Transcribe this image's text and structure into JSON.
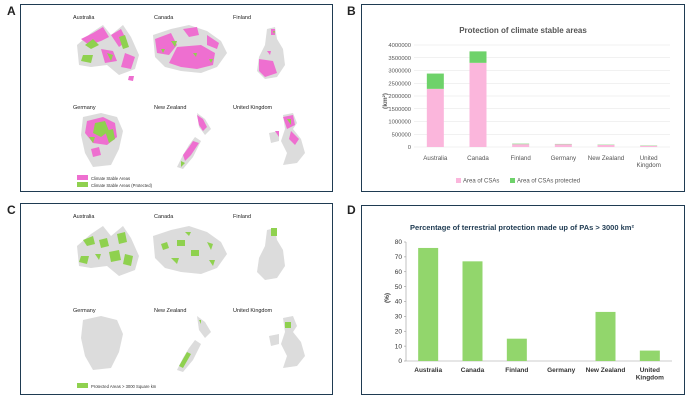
{
  "panels": {
    "a": {
      "letter": "A",
      "maps": [
        {
          "label": "Australia"
        },
        {
          "label": "Canada"
        },
        {
          "label": "Finland"
        },
        {
          "label": "Germany"
        },
        {
          "label": "New Zealand"
        },
        {
          "label": "United Kingdom"
        }
      ],
      "legend": [
        {
          "label": "Climate Stable Areas",
          "color": "#ee6fd0"
        },
        {
          "label": "Climate Stable Areas (Protected)",
          "color": "#8fd14f"
        }
      ]
    },
    "b": {
      "letter": "B"
    },
    "c": {
      "letter": "C",
      "maps": [
        {
          "label": "Australia"
        },
        {
          "label": "Canada"
        },
        {
          "label": "Finland"
        },
        {
          "label": "Germany"
        },
        {
          "label": "New Zealand"
        },
        {
          "label": "United Kingdom"
        }
      ],
      "legend": [
        {
          "label": "Protected Areas > 3000 Square km",
          "color": "#8fd14f"
        }
      ]
    },
    "d": {
      "letter": "D"
    }
  },
  "colors": {
    "land": "#dcdcdc",
    "pink": "#ee6fd0",
    "green": "#8fd14f",
    "pink_light": "#fbb6dc",
    "green_bar": "#92d66c"
  },
  "chart_data": [
    {
      "type": "bar",
      "stacked": true,
      "title": "Protection of climate stable areas",
      "ylabel": "(km²)",
      "categories": [
        "Australia",
        "Canada",
        "Finland",
        "Germany",
        "New Zealand",
        "United Kingdom"
      ],
      "series": [
        {
          "name": "Area of CSAs",
          "color": "#fbb6dc",
          "values": [
            2280000,
            3300000,
            110000,
            110000,
            80000,
            50000
          ]
        },
        {
          "name": "Area of CSAs protected",
          "color": "#6ed26a",
          "values": [
            600000,
            450000,
            20000,
            10000,
            10000,
            5000
          ]
        }
      ],
      "ylim": [
        0,
        4000000
      ],
      "yticks": [
        "0",
        "500000",
        "1000000",
        "1500000",
        "2000000",
        "2500000",
        "3000000",
        "3500000",
        "4000000"
      ],
      "grid": true,
      "legend": "bottom"
    },
    {
      "type": "bar",
      "title": "Percentage of terrestrial protection made up of PAs > 3000 km²",
      "ylabel": "(%)",
      "categories": [
        "Australia",
        "Canada",
        "Finland",
        "Germany",
        "New Zealand",
        "United Kingdom"
      ],
      "values": [
        76,
        67,
        15,
        0,
        33,
        7
      ],
      "color": "#92d66c",
      "ylim": [
        0,
        80
      ],
      "yticks": [
        "0",
        "10",
        "20",
        "30",
        "40",
        "50",
        "60",
        "70",
        "80"
      ],
      "grid": false
    }
  ]
}
